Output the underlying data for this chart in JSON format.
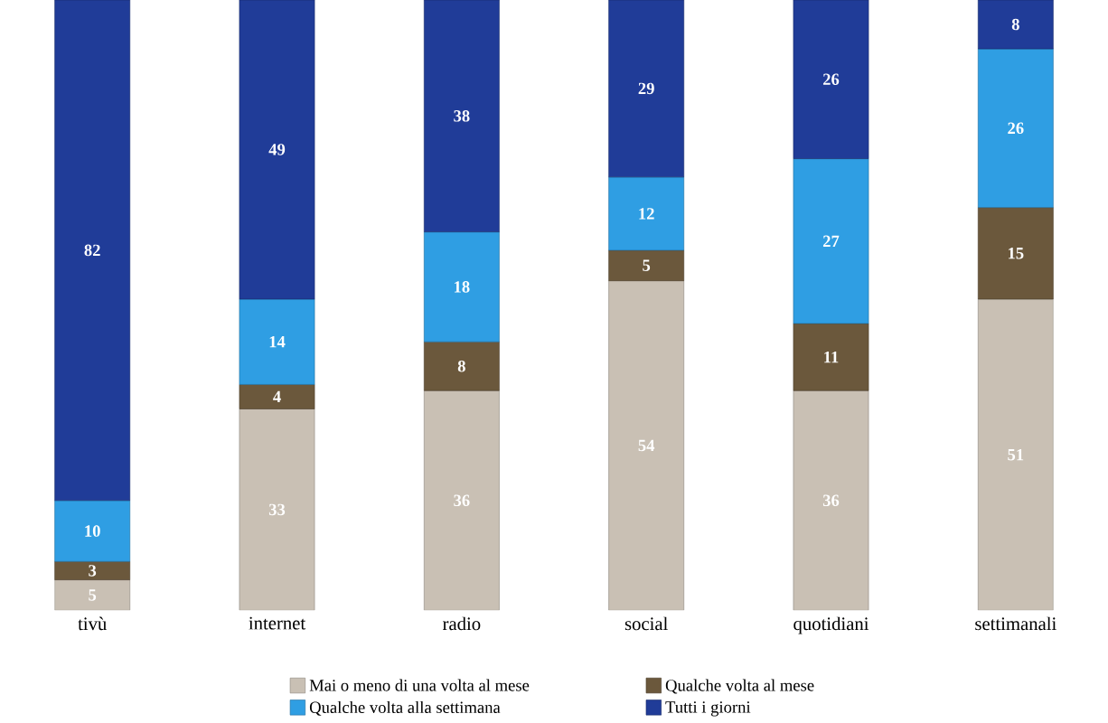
{
  "chart_data": {
    "type": "bar",
    "stacked": true,
    "data_labels": true,
    "legend": "bottom",
    "categories": [
      "tivù",
      "internet",
      "radio",
      "social",
      "quotidiani",
      "settimanali"
    ],
    "series": [
      {
        "name": "Mai o meno di una volta al mese",
        "color": "#c9c0b4",
        "values": [
          5,
          33,
          36,
          54,
          36,
          51
        ]
      },
      {
        "name": "Qualche volta al mese",
        "color": "#6b583c",
        "values": [
          3,
          4,
          8,
          5,
          11,
          15
        ]
      },
      {
        "name": "Qualche volta alla settimana",
        "color": "#2f9ee3",
        "values": [
          10,
          14,
          18,
          12,
          27,
          26
        ]
      },
      {
        "name": "Tutti i giorni",
        "color": "#203c98",
        "values": [
          82,
          49,
          38,
          29,
          26,
          8
        ]
      }
    ]
  }
}
